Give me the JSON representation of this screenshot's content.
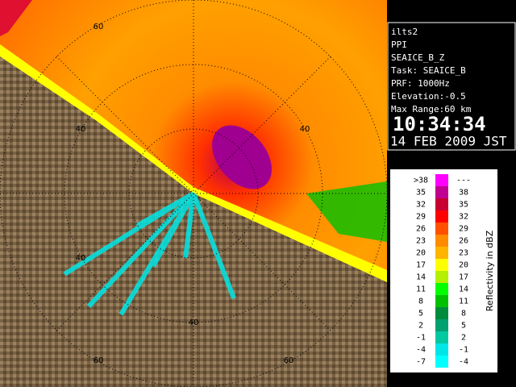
{
  "info": {
    "site": "ilts2",
    "mode": "PPI",
    "product": "SEAICE_B_Z",
    "task": "Task: SEAICE_B",
    "prf": "PRF: 1000Hz",
    "elevation": "Elevation:-0.5",
    "max_range": "Max Range:60 km",
    "time": "10:34:34",
    "date": "14 FEB 2009 JST"
  },
  "range_labels": [
    60,
    40,
    40,
    40,
    40,
    60,
    60
  ],
  "legend": {
    "title": "Reflectivity in dBZ",
    "rows": [
      {
        "low": ">38",
        "high": "---",
        "color": "#ff00ff"
      },
      {
        "low": 35,
        "high": 38,
        "color": "#c00090"
      },
      {
        "low": 32,
        "high": 35,
        "color": "#c80030"
      },
      {
        "low": 29,
        "high": 32,
        "color": "#ff0000"
      },
      {
        "low": 26,
        "high": 29,
        "color": "#ff5000"
      },
      {
        "low": 23,
        "high": 26,
        "color": "#ff8c00"
      },
      {
        "low": 20,
        "high": 23,
        "color": "#ffb400"
      },
      {
        "low": 17,
        "high": 20,
        "color": "#ffff00"
      },
      {
        "low": 14,
        "high": 17,
        "color": "#b4f000"
      },
      {
        "low": 11,
        "high": 14,
        "color": "#00ff00"
      },
      {
        "low": 8,
        "high": 11,
        "color": "#00c000"
      },
      {
        "low": 5,
        "high": 8,
        "color": "#008c3c"
      },
      {
        "low": 2,
        "high": 5,
        "color": "#00a070"
      },
      {
        "low": -1,
        "high": 2,
        "color": "#00c8a0"
      },
      {
        "low": -4,
        "high": -1,
        "color": "#00e6e6"
      },
      {
        "low": -7,
        "high": -4,
        "color": "#00ffff"
      }
    ]
  }
}
